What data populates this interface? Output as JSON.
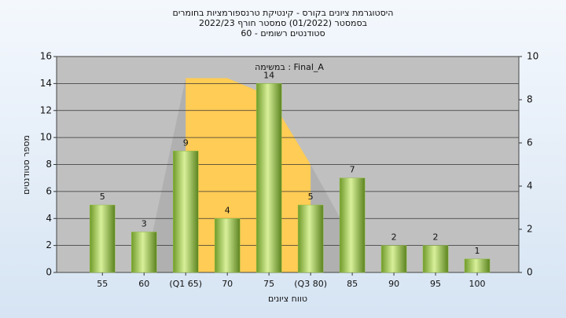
{
  "chart_data": {
    "type": "bar",
    "title": "היסטוגרמת ציונים בקורס - קינטיקת טרנספורמציות בחומרים",
    "subtitle": "בסמסטר  (01/2022)  סמסטר חורף 2022/23",
    "subtitle2": "סטודנטים רשומים - 60",
    "annotation": "במשימה : Final_A",
    "x_label": "טווח ציונים",
    "y_label": "מספר סטודנטים",
    "categories": [
      "55",
      "60",
      "(Q1 65)",
      "70",
      "75",
      "(Q3 80)",
      "85",
      "90",
      "95",
      "100"
    ],
    "values": [
      5,
      3,
      9,
      4,
      14,
      5,
      7,
      2,
      2,
      1
    ],
    "color": "#8fbf3f",
    "areas": [
      {
        "color": "#b0b0b0",
        "values": [
          null,
          0,
          14.4,
          14.4,
          13.1,
          8,
          2.4,
          null,
          null,
          null
        ]
      },
      {
        "color": "#ffcc55",
        "values": [
          null,
          null,
          14.4,
          14.4,
          13.1,
          8,
          null,
          null,
          null,
          null
        ]
      }
    ],
    "ylim": [
      0,
      16
    ],
    "yticks": [
      0,
      2,
      4,
      6,
      8,
      10,
      12,
      14,
      16
    ],
    "y2lim": [
      0,
      10
    ],
    "y2ticks": [
      0,
      2,
      4,
      6,
      8,
      10
    ],
    "grid": true
  }
}
